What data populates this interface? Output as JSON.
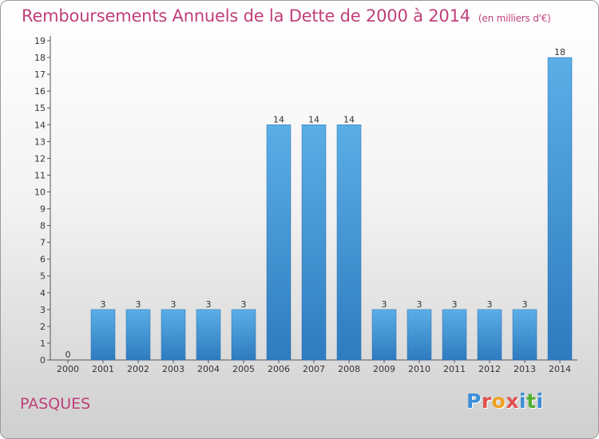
{
  "header": {
    "title": "Remboursements Annuels de la Dette de 2000 à 2014",
    "subtitle": "(en milliers d'€)"
  },
  "footer": {
    "commune": "PASQUES",
    "logo_text": "Proxiti"
  },
  "colors": {
    "title": "#c0407a",
    "bar_top": "#5aaee6",
    "bar_bottom": "#2e7bbf",
    "logo_letters": [
      "#3a8ed8",
      "#e05050",
      "#f0a020",
      "#e05050",
      "#3a8ed8",
      "#50b030",
      "#3a8ed8"
    ]
  },
  "chart_data": {
    "type": "bar",
    "categories": [
      "2000",
      "2001",
      "2002",
      "2003",
      "2004",
      "2005",
      "2006",
      "2007",
      "2008",
      "2009",
      "2010",
      "2011",
      "2012",
      "2013",
      "2014"
    ],
    "values": [
      0,
      3,
      3,
      3,
      3,
      3,
      14,
      14,
      14,
      3,
      3,
      3,
      3,
      3,
      18
    ],
    "title": "Remboursements Annuels de la Dette de 2000 à 2014",
    "xlabel": "",
    "ylabel": "",
    "ylim": [
      0,
      19
    ],
    "yticks": [
      "0",
      "1",
      "2",
      "3",
      "4",
      "5",
      "6",
      "7",
      "8",
      "9",
      "10",
      "11",
      "12",
      "13",
      "14",
      "15",
      "16",
      "17",
      "18",
      "19"
    ],
    "grid": false,
    "data_labels": true
  }
}
